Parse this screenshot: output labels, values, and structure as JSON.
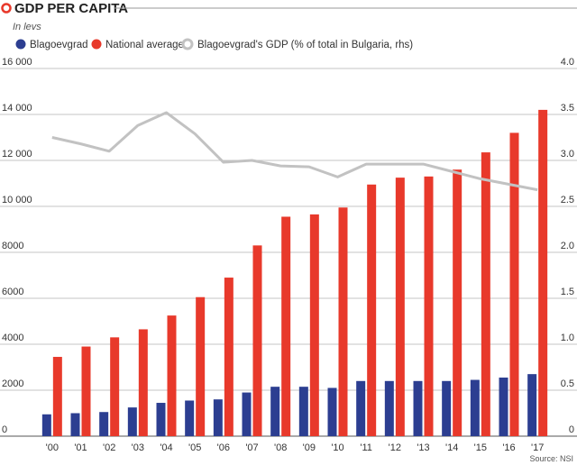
{
  "chart_data": {
    "type": "bar",
    "title": "GDP PER CAPITA",
    "subtitle": "In levs",
    "source": "Source: NSI",
    "categories": [
      "'00",
      "'01",
      "'02",
      "'03",
      "'04",
      "'05",
      "'06",
      "'07",
      "'08",
      "'09",
      "'10",
      "'11",
      "'12",
      "'13",
      "'14",
      "'15",
      "'16",
      "'17"
    ],
    "y_left": {
      "min": 0,
      "max": 16000,
      "ticks": [
        "0",
        "2000",
        "4000",
        "6000",
        "8000",
        "10 000",
        "12 000",
        "14 000",
        "16 000"
      ]
    },
    "y_right": {
      "min": 0,
      "max": 4.0,
      "ticks": [
        "0",
        "0.5",
        "1.0",
        "1.5",
        "2.0",
        "2.5",
        "3.0",
        "3.5",
        "4.0"
      ]
    },
    "grid": true,
    "legend_position": "top",
    "series": [
      {
        "name": "Blagoevgrad",
        "type": "bar",
        "axis": "left",
        "color": "#2c3e91",
        "values": [
          950,
          1000,
          1050,
          1250,
          1450,
          1550,
          1600,
          1900,
          2150,
          2150,
          2100,
          2400,
          2400,
          2400,
          2400,
          2450,
          2550,
          2700
        ]
      },
      {
        "name": "National average",
        "type": "bar",
        "axis": "left",
        "color": "#e8392b",
        "values": [
          3450,
          3900,
          4300,
          4650,
          5250,
          6050,
          6900,
          8300,
          9550,
          9650,
          9950,
          10950,
          11250,
          11300,
          11600,
          12350,
          13200,
          14200
        ]
      },
      {
        "name": "Blagoevgrad's GDP (% of total in Bulgaria, rhs)",
        "type": "line",
        "axis": "right",
        "color": "#c2c2c2",
        "values": [
          3.25,
          3.18,
          3.1,
          3.38,
          3.52,
          3.29,
          2.98,
          3.0,
          2.94,
          2.93,
          2.82,
          2.96,
          2.96,
          2.96,
          2.88,
          2.8,
          2.74,
          2.68
        ]
      }
    ]
  }
}
